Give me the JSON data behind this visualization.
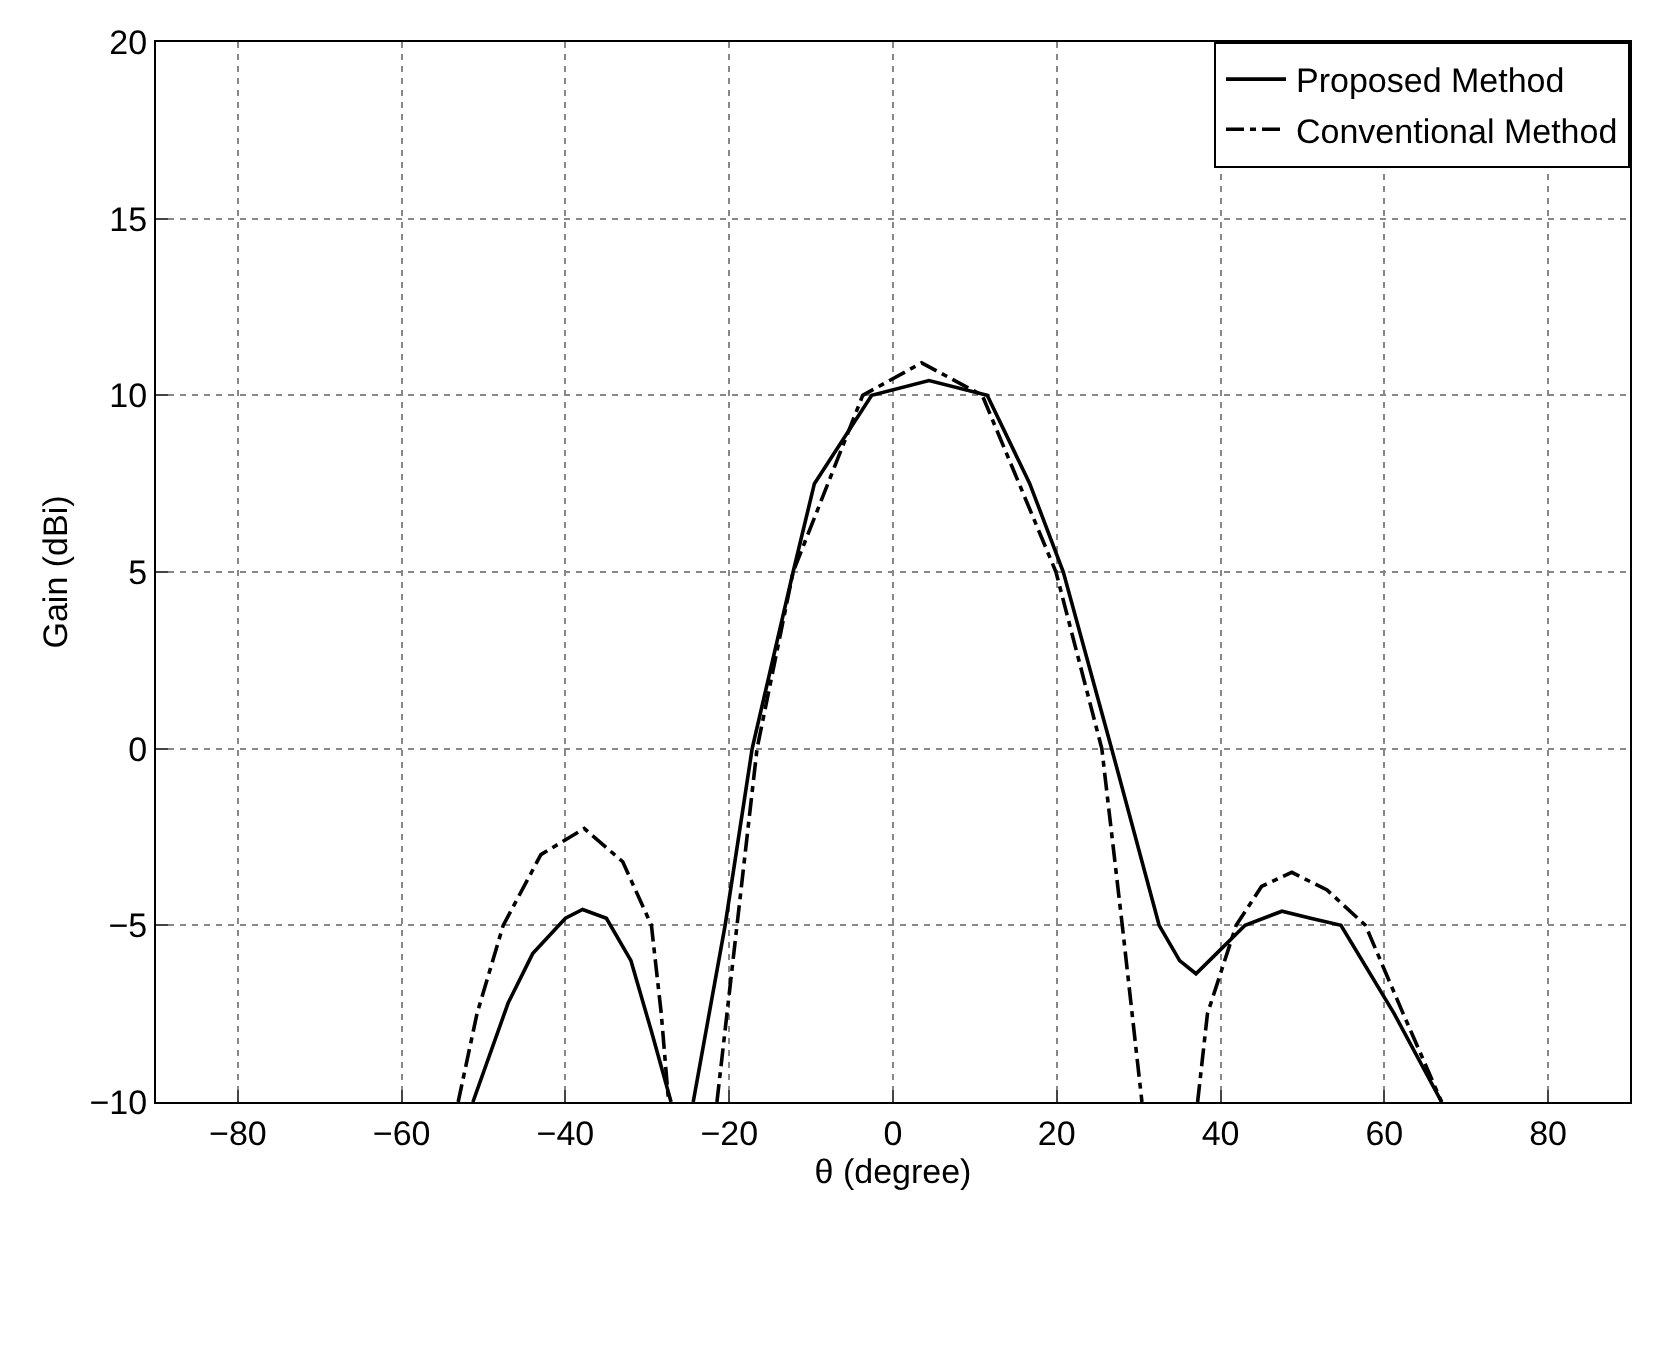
{
  "chart_data": {
    "type": "line",
    "xlabel": "θ (degree)",
    "ylabel": "Gain (dBi)",
    "xlim": [
      -90,
      90
    ],
    "xticks": [
      -80,
      -60,
      -40,
      -20,
      0,
      20,
      40,
      60,
      80
    ],
    "ylim": [
      -10,
      20
    ],
    "yticks": [
      -10,
      -5,
      0,
      5,
      10,
      15,
      20
    ],
    "grid": true,
    "legend": "top right",
    "series": [
      {
        "name": "Proposed Method",
        "color": "#000000",
        "line_style": "solid",
        "x": [
          -51.3,
          -47,
          -44,
          -40,
          -37.9,
          -35,
          -32,
          -29.5,
          -27.1,
          -26,
          -24.4,
          -20.5,
          -17.2,
          -12.2,
          -9.6,
          -2.6,
          4.4,
          11.5,
          16.7,
          20.8,
          26.7,
          32.5,
          35,
          37,
          39.5,
          43,
          47.5,
          51,
          54.7,
          61.2,
          67
        ],
        "values": [
          -10,
          -7.2,
          -5.8,
          -4.8,
          -4.55,
          -4.8,
          -6,
          -8,
          -10,
          null,
          -10,
          -5,
          0,
          5,
          7.5,
          10,
          10.42,
          10,
          7.5,
          5,
          0,
          -5,
          -6,
          -6.37,
          -5.8,
          -5,
          -4.6,
          -4.8,
          -5,
          -7.5,
          -10
        ]
      },
      {
        "name": "Conventional Method",
        "color": "#000000",
        "line_style": "dashdot",
        "x": [
          -53.1,
          -50.8,
          -47.6,
          -43,
          -37.7,
          -33,
          -29.5,
          -28.3,
          -27.4,
          -24,
          -21.5,
          -16.6,
          -12.2,
          -3.7,
          3.5,
          10.9,
          19.9,
          25.5,
          28,
          30.4,
          34,
          37.2,
          38.4,
          41.9,
          45,
          48.7,
          53,
          57.7,
          62.3,
          67
        ],
        "values": [
          -10,
          -7.5,
          -5,
          -3,
          -2.26,
          -3.2,
          -5,
          -7.5,
          -10,
          null,
          -10,
          0,
          5,
          10,
          10.92,
          10,
          5,
          0,
          -5,
          -10,
          null,
          -10,
          -7.5,
          -5,
          -3.9,
          -3.5,
          -4,
          -5,
          -7.5,
          -10
        ]
      }
    ]
  }
}
